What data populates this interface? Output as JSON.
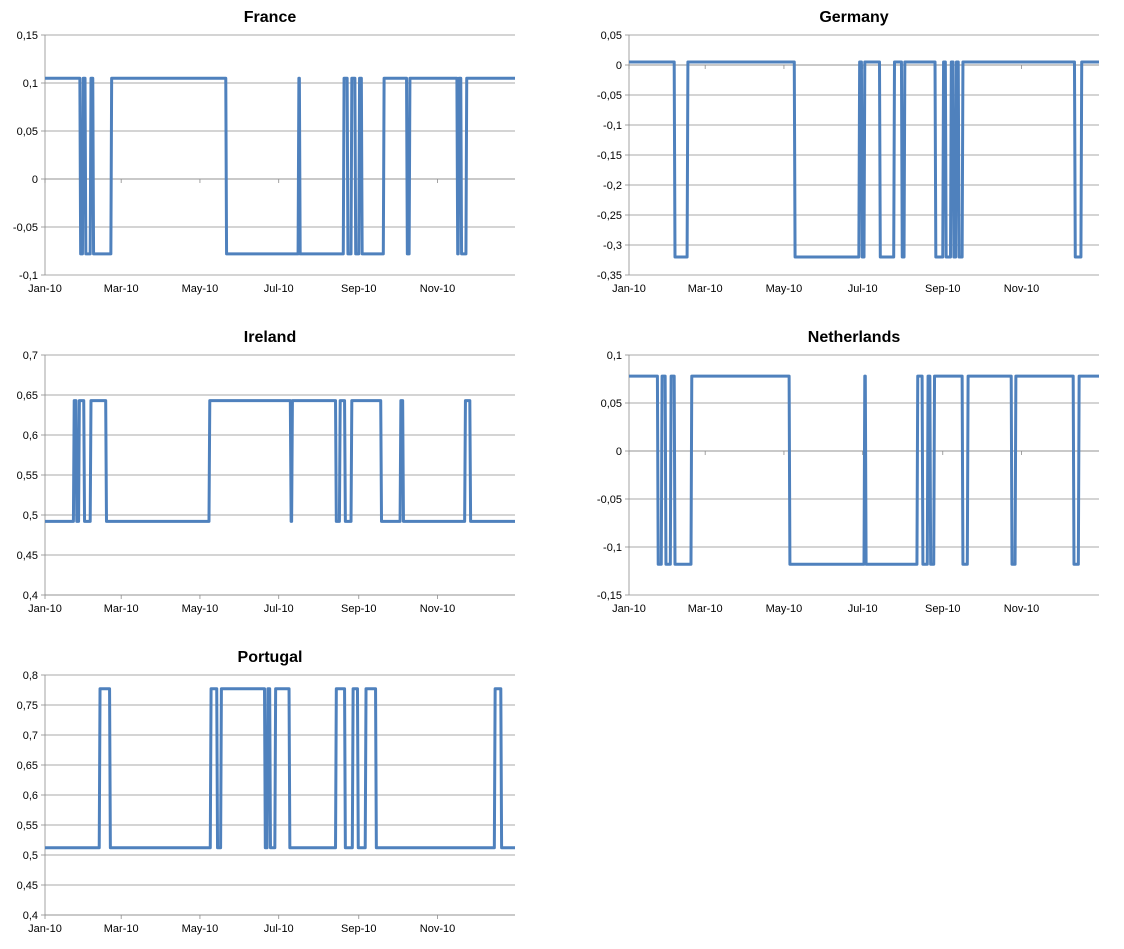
{
  "chart_data": [
    {
      "type": "line",
      "title": "France",
      "x_tick_labels": [
        "Jan-10",
        "Mar-10",
        "May-10",
        "Jul-10",
        "Sep-10",
        "Nov-10"
      ],
      "y_tick_labels": [
        "-0,1",
        "-0,05",
        "0",
        "0,05",
        "0,1",
        "0,15"
      ],
      "ylim": [
        -0.1,
        0.15
      ],
      "xlim_days": [
        0,
        364
      ],
      "grid": true,
      "legend": "none",
      "color": "#4F81BD",
      "levels": [
        0.105,
        -0.078
      ],
      "segments": [
        [
          0,
          0.105
        ],
        [
          27,
          -0.078
        ],
        [
          29,
          0.105
        ],
        [
          31,
          -0.078
        ],
        [
          35,
          0.105
        ],
        [
          37,
          -0.078
        ],
        [
          51,
          0.105
        ],
        [
          140,
          -0.078
        ],
        [
          196,
          0.105
        ],
        [
          197,
          -0.078
        ],
        [
          231,
          0.105
        ],
        [
          234,
          -0.078
        ],
        [
          237,
          0.105
        ],
        [
          240,
          -0.078
        ],
        [
          243,
          0.105
        ],
        [
          245,
          -0.078
        ],
        [
          262,
          0.105
        ],
        [
          280,
          -0.078
        ],
        [
          282,
          0.105
        ],
        [
          319,
          -0.078
        ],
        [
          320,
          0.105
        ],
        [
          322,
          -0.078
        ],
        [
          326,
          0.105
        ]
      ]
    },
    {
      "type": "line",
      "title": "Germany",
      "x_tick_labels": [
        "Jan-10",
        "Mar-10",
        "May-10",
        "Jul-10",
        "Sep-10",
        "Nov-10"
      ],
      "y_tick_labels": [
        "-0,35",
        "-0,3",
        "-0,25",
        "-0,2",
        "-0,15",
        "-0,1",
        "-0,05",
        "0",
        "0,05"
      ],
      "ylim": [
        -0.35,
        0.05
      ],
      "xlim_days": [
        0,
        364
      ],
      "grid": true,
      "legend": "none",
      "color": "#4F81BD",
      "levels": [
        0.005,
        -0.32
      ],
      "segments": [
        [
          0,
          0.005
        ],
        [
          35,
          -0.32
        ],
        [
          45,
          0.005
        ],
        [
          128,
          -0.32
        ],
        [
          178,
          0.005
        ],
        [
          180,
          -0.32
        ],
        [
          182,
          0.005
        ],
        [
          194,
          -0.32
        ],
        [
          205,
          0.005
        ],
        [
          211,
          -0.32
        ],
        [
          213,
          0.005
        ],
        [
          237,
          -0.32
        ],
        [
          243,
          0.005
        ],
        [
          245,
          -0.32
        ],
        [
          249,
          0.005
        ],
        [
          251,
          -0.32
        ],
        [
          253,
          0.005
        ],
        [
          255,
          -0.32
        ],
        [
          258,
          0.005
        ],
        [
          345,
          -0.32
        ],
        [
          350,
          0.005
        ]
      ]
    },
    {
      "type": "line",
      "title": "Ireland",
      "x_tick_labels": [
        "Jan-10",
        "Mar-10",
        "May-10",
        "Jul-10",
        "Sep-10",
        "Nov-10"
      ],
      "y_tick_labels": [
        "0,4",
        "0,45",
        "0,5",
        "0,55",
        "0,6",
        "0,65",
        "0,7"
      ],
      "ylim": [
        0.4,
        0.7
      ],
      "xlim_days": [
        0,
        364
      ],
      "grid": true,
      "legend": "none",
      "color": "#4F81BD",
      "levels": [
        0.643,
        0.492
      ],
      "segments": [
        [
          0,
          0.492
        ],
        [
          22,
          0.643
        ],
        [
          24,
          0.492
        ],
        [
          26,
          0.643
        ],
        [
          30,
          0.492
        ],
        [
          35,
          0.643
        ],
        [
          47,
          0.492
        ],
        [
          127,
          0.643
        ],
        [
          190,
          0.492
        ],
        [
          191,
          0.643
        ],
        [
          225,
          0.492
        ],
        [
          228,
          0.643
        ],
        [
          232,
          0.492
        ],
        [
          237,
          0.643
        ],
        [
          260,
          0.492
        ],
        [
          275,
          0.643
        ],
        [
          277,
          0.492
        ],
        [
          325,
          0.643
        ],
        [
          329,
          0.492
        ]
      ]
    },
    {
      "type": "line",
      "title": "Netherlands",
      "x_tick_labels": [
        "Jan-10",
        "Mar-10",
        "May-10",
        "Jul-10",
        "Sep-10",
        "Nov-10"
      ],
      "y_tick_labels": [
        "-0,15",
        "-0,1",
        "-0,05",
        "0",
        "0,05",
        "0,1"
      ],
      "ylim": [
        -0.15,
        0.1
      ],
      "xlim_days": [
        0,
        364
      ],
      "grid": true,
      "legend": "none",
      "color": "#4F81BD",
      "levels": [
        0.078,
        -0.118
      ],
      "segments": [
        [
          0,
          0.078
        ],
        [
          22,
          -0.118
        ],
        [
          25,
          0.078
        ],
        [
          28,
          -0.118
        ],
        [
          32,
          0.078
        ],
        [
          35,
          -0.118
        ],
        [
          48,
          0.078
        ],
        [
          124,
          -0.118
        ],
        [
          182,
          0.078
        ],
        [
          183,
          -0.118
        ],
        [
          223,
          0.078
        ],
        [
          227,
          -0.118
        ],
        [
          231,
          0.078
        ],
        [
          233,
          -0.118
        ],
        [
          236,
          0.078
        ],
        [
          258,
          -0.118
        ],
        [
          262,
          0.078
        ],
        [
          296,
          -0.118
        ],
        [
          299,
          0.078
        ],
        [
          344,
          -0.118
        ],
        [
          348,
          0.078
        ]
      ]
    },
    {
      "type": "line",
      "title": "Portugal",
      "x_tick_labels": [
        "Jan-10",
        "Mar-10",
        "May-10",
        "Jul-10",
        "Sep-10",
        "Nov-10"
      ],
      "y_tick_labels": [
        "0,4",
        "0,45",
        "0,5",
        "0,55",
        "0,6",
        "0,65",
        "0,7",
        "0,75",
        "0,8"
      ],
      "ylim": [
        0.4,
        0.8
      ],
      "xlim_days": [
        0,
        364
      ],
      "grid": true,
      "legend": "none",
      "color": "#4F81BD",
      "levels": [
        0.777,
        0.512
      ],
      "segments": [
        [
          0,
          0.512
        ],
        [
          42,
          0.777
        ],
        [
          50,
          0.512
        ],
        [
          128,
          0.777
        ],
        [
          133,
          0.512
        ],
        [
          136,
          0.777
        ],
        [
          170,
          0.512
        ],
        [
          172,
          0.777
        ],
        [
          174,
          0.512
        ],
        [
          178,
          0.777
        ],
        [
          189,
          0.512
        ],
        [
          225,
          0.777
        ],
        [
          232,
          0.512
        ],
        [
          238,
          0.777
        ],
        [
          242,
          0.512
        ],
        [
          248,
          0.777
        ],
        [
          256,
          0.512
        ],
        [
          348,
          0.777
        ],
        [
          353,
          0.512
        ]
      ]
    }
  ]
}
